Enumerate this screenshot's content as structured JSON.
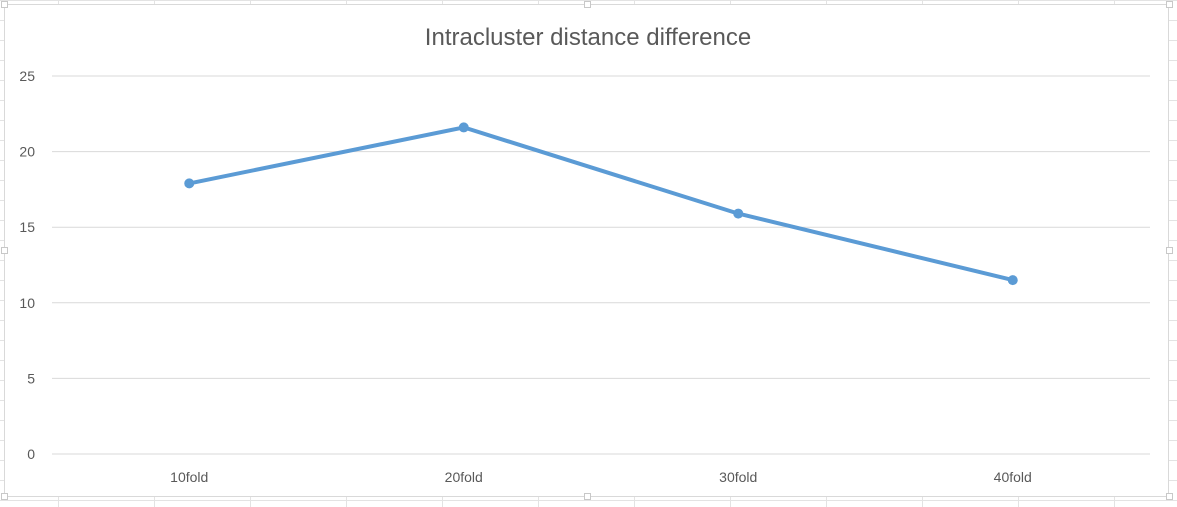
{
  "chart_data": {
    "type": "line",
    "title": "Intracluster distance difference",
    "categories": [
      "10fold",
      "20fold",
      "30fold",
      "40fold"
    ],
    "series": [
      {
        "values": [
          17.9,
          21.6,
          15.9,
          11.5
        ],
        "color": "#5b9bd5"
      }
    ],
    "ylim": [
      0,
      25
    ],
    "yticks": [
      0,
      5,
      10,
      15,
      20,
      25
    ],
    "grid": true,
    "legend": "none",
    "gridline_color": "#d9d9d9",
    "text_color": "#595959"
  }
}
